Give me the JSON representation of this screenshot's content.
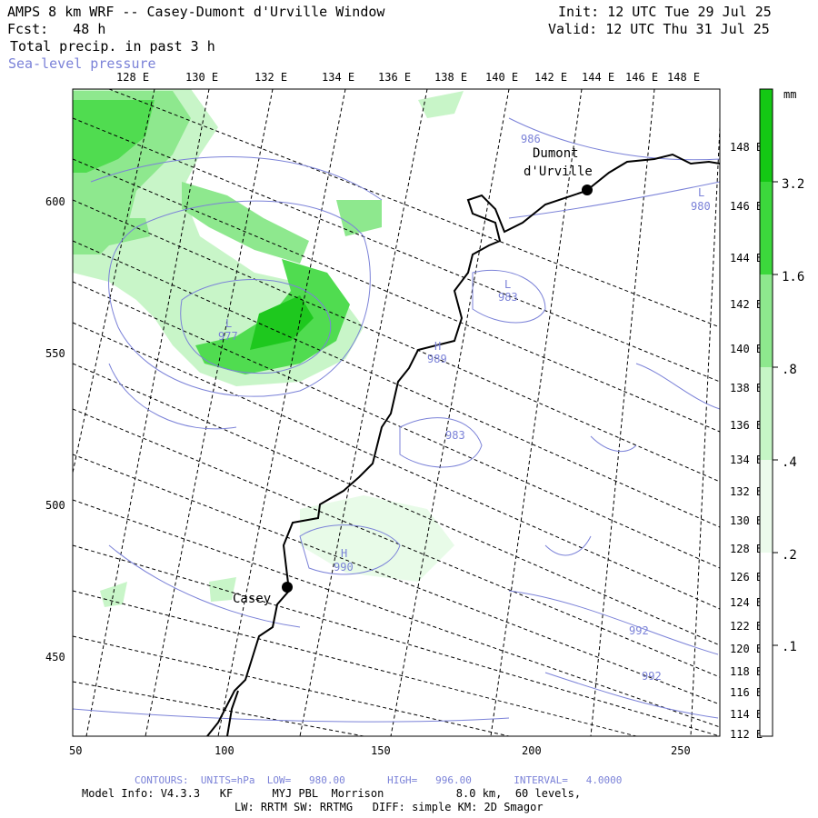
{
  "header": {
    "title": "AMPS 8 km WRF -- Casey-Dumont d'Urville Window",
    "init": "Init: 12 UTC Tue 29 Jul 25",
    "fcst": "Fcst:   48 h",
    "valid": "Valid: 12 UTC Thu 31 Jul 25",
    "field": "Total precip. in past 3 h",
    "overlay": "Sea-level pressure"
  },
  "map": {
    "top_lon_labels": [
      "128 E",
      "130 E",
      "132 E",
      "134 E",
      "136 E",
      "138 E",
      "140 E",
      "142 E",
      "144 E",
      "146 E",
      "148 E"
    ],
    "right_lon_labels": [
      "148 E",
      "146 E",
      "144 E",
      "142 E",
      "140 E",
      "138 E",
      "136 E",
      "134 E",
      "132 E",
      "130 E",
      "128 E",
      "126 E",
      "124 E",
      "122 E",
      "120 E",
      "118 E",
      "116 E",
      "114 E",
      "112 E"
    ],
    "x_ticks": [
      "50",
      "100",
      "150",
      "200",
      "250"
    ],
    "y_ticks": [
      "600",
      "550",
      "500",
      "450"
    ],
    "stations": [
      {
        "name_line1": "Dumont",
        "name_line2": "d'Urville"
      },
      {
        "name_line1": "Casey",
        "name_line2": ""
      }
    ],
    "pressure_labels": [
      {
        "letter": "L",
        "value": "977"
      },
      {
        "letter": "L",
        "value": "983"
      },
      {
        "letter": "H",
        "value": "989"
      },
      {
        "letter": "",
        "value": "983"
      },
      {
        "letter": "H",
        "value": "990"
      },
      {
        "letter": "L",
        "value": "980"
      },
      {
        "letter": "",
        "value": "986"
      },
      {
        "letter": "",
        "value": "992"
      },
      {
        "letter": "",
        "value": "992"
      }
    ],
    "colors": {
      "precip_1": "#e8fbe8",
      "precip_2": "#c8f5c8",
      "precip_3": "#8ee88e",
      "precip_4": "#50dc50",
      "precip_5": "#1ec81e",
      "slp": "#7b82d8",
      "coast": "#000000"
    }
  },
  "colorbar": {
    "unit": "mm",
    "labels": [
      "3.2",
      "1.6",
      ".8",
      ".4",
      ".2",
      ".1"
    ],
    "colors": [
      "#14c814",
      "#3cd83c",
      "#8ee88e",
      "#c6f5c6",
      "#ecfbec",
      "#ffffff"
    ]
  },
  "footer": {
    "contours": "CONTOURS:  UNITS=hPa  LOW=   980.00       HIGH=   996.00       INTERVAL=   4.0000",
    "model_info": "Model Info: V4.3.3   KF      MYJ PBL  Morrison           8.0 km,  60 levels,",
    "physics": "LW: RRTM SW: RRTMG   DIFF: simple KM: 2D Smagor"
  }
}
